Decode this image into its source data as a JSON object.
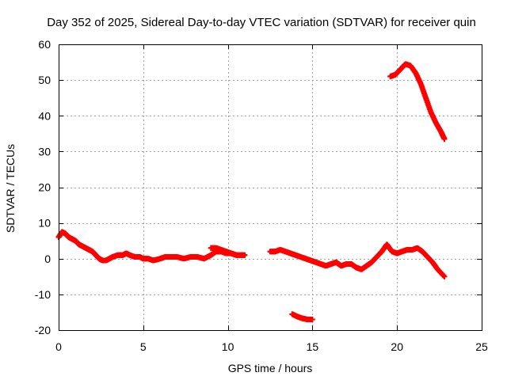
{
  "chart_data": {
    "type": "scatter",
    "title": "Day 352 of 2025, Sidereal Day-to-day VTEC variation (SDTVAR) for receiver quin",
    "xlabel": "GPS time / hours",
    "ylabel": "SDTVAR / TECUs",
    "xlim": [
      0,
      25
    ],
    "ylim": [
      -20,
      60
    ],
    "xticks": [
      0,
      5,
      10,
      15,
      20,
      25
    ],
    "yticks": [
      -20,
      -10,
      0,
      10,
      20,
      30,
      40,
      50,
      60
    ],
    "grid": true,
    "marker": "plus",
    "color": "#ff0000",
    "series": [
      {
        "name": "segment-1",
        "x": [
          0.0,
          0.2,
          0.4,
          0.6,
          0.8,
          1.0,
          1.2,
          1.4,
          1.6,
          1.8,
          2.0,
          2.2,
          2.4,
          2.6,
          2.8,
          3.0,
          3.2,
          3.5,
          3.8,
          4.0,
          4.2,
          4.5,
          4.8,
          5.0,
          5.3,
          5.6,
          6.0,
          6.3,
          6.6,
          7.0,
          7.4,
          7.8,
          8.2,
          8.6,
          9.0,
          9.3,
          9.6,
          9.9,
          10.2,
          10.5,
          10.8,
          11.0
        ],
        "y": [
          6,
          7.5,
          7,
          6,
          5.5,
          5,
          4,
          3.5,
          3,
          2.5,
          2,
          1,
          0,
          -0.5,
          -0.5,
          0,
          0.5,
          1,
          1,
          1.5,
          1,
          0.5,
          0.5,
          0,
          0,
          -0.5,
          0,
          0.5,
          0.5,
          0.5,
          0,
          0.5,
          0.5,
          0,
          1,
          2,
          2,
          1.5,
          1.5,
          1,
          1,
          1
        ]
      },
      {
        "name": "segment-2",
        "x": [
          9.0,
          9.3,
          9.6,
          9.9,
          10.2,
          10.5
        ],
        "y": [
          3,
          3,
          2.5,
          2,
          1.5,
          1
        ]
      },
      {
        "name": "segment-3",
        "x": [
          12.5,
          12.8,
          13.1,
          13.4,
          13.7,
          14.0,
          14.3,
          14.6,
          14.9,
          15.2,
          15.5,
          15.8,
          16.1,
          16.4,
          16.7,
          17.0,
          17.3,
          17.6,
          17.9,
          18.2,
          18.5,
          18.8,
          19.1,
          19.4,
          19.7,
          20.0,
          20.3,
          20.6,
          20.9,
          21.2,
          21.5,
          21.8,
          22.1,
          22.4,
          22.8
        ],
        "y": [
          2,
          2,
          2.5,
          2,
          1.5,
          1,
          0.5,
          0,
          -0.5,
          -1,
          -1.5,
          -2,
          -1.5,
          -1,
          -2,
          -1.5,
          -1.5,
          -2.5,
          -3,
          -2,
          -1,
          0.5,
          2,
          4,
          2,
          1.5,
          2,
          2.5,
          2.5,
          3,
          2,
          0.5,
          -1,
          -3,
          -5
        ]
      },
      {
        "name": "segment-4",
        "x": [
          13.8,
          14.1,
          14.4,
          14.7,
          15.0
        ],
        "y": [
          -15.5,
          -16.2,
          -16.7,
          -17,
          -17
        ]
      },
      {
        "name": "segment-5",
        "x": [
          19.6,
          19.9,
          20.2,
          20.5,
          20.8,
          21.1,
          21.4,
          21.7,
          22.0,
          22.3,
          22.6,
          22.8
        ],
        "y": [
          51,
          51.5,
          53,
          54.5,
          54,
          52,
          49,
          45,
          41,
          38,
          35.5,
          33.5
        ]
      }
    ]
  }
}
